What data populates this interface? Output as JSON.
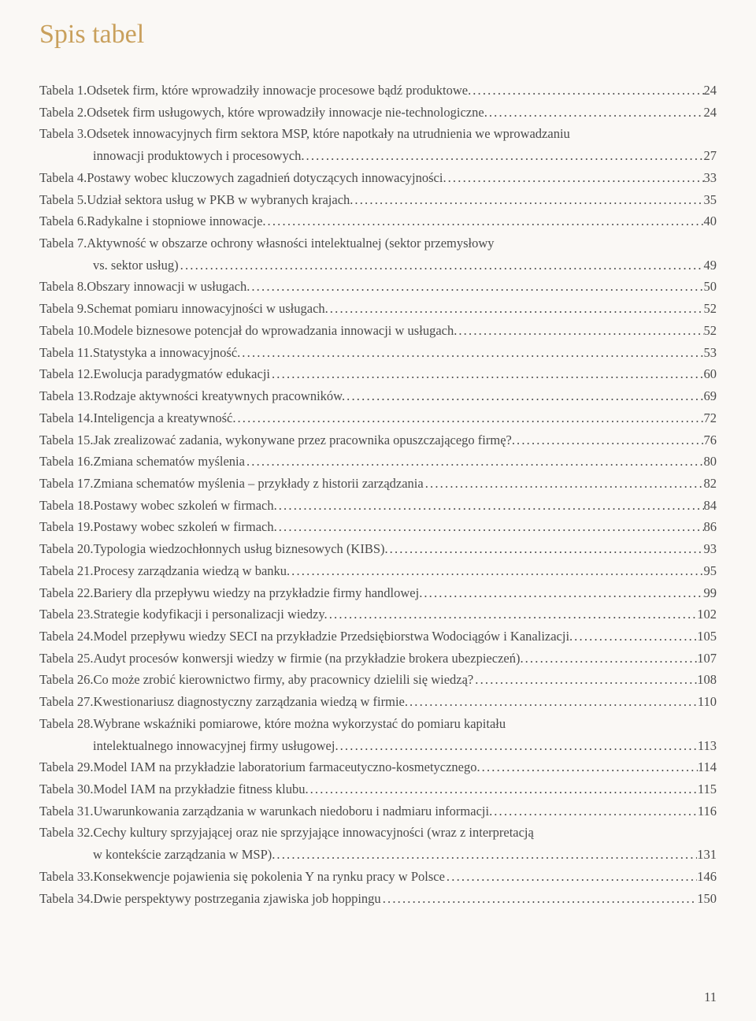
{
  "title": "Spis tabel",
  "page_number": "11",
  "colors": {
    "title_color": "#c9a05c",
    "text_color": "#4a4a4a",
    "background": "#faf8f5"
  },
  "typography": {
    "title_fontsize": 34,
    "body_fontsize": 16.5,
    "line_height": 1.68
  },
  "entries": [
    {
      "label": "Tabela 1.",
      "title": " Odsetek firm, które wprowadziły innowacje procesowe bądź produktowe.",
      "page": "24",
      "indent": false
    },
    {
      "label": "Tabela 2.",
      "title": " Odsetek firm usługowych, które wprowadziły innowacje nie-technologiczne.",
      "page": "24",
      "indent": false
    },
    {
      "label": "Tabela 3.",
      "title": " Odsetek innowacyjnych firm sektora MSP, które napotkały na utrudnienia we wprowadzaniu",
      "page": "",
      "indent": false
    },
    {
      "label": "",
      "title": "innowacji produktowych i procesowych.",
      "page": "27",
      "indent": true
    },
    {
      "label": "Tabela 4.",
      "title": " Postawy wobec kluczowych zagadnień dotyczących innowacyjności.",
      "page": "33",
      "indent": false
    },
    {
      "label": "Tabela 5.",
      "title": " Udział sektora usług w PKB w wybranych krajach.",
      "page": "35",
      "indent": false
    },
    {
      "label": "Tabela 6.",
      "title": " Radykalne i stopniowe innowacje.",
      "page": "40",
      "indent": false
    },
    {
      "label": "Tabela 7.",
      "title": " Aktywność w obszarze ochrony własności intelektualnej (sektor przemysłowy",
      "page": "",
      "indent": false
    },
    {
      "label": "",
      "title": "vs. sektor usług)",
      "page": "49",
      "indent": true
    },
    {
      "label": "Tabela 8.",
      "title": " Obszary innowacji w usługach.",
      "page": "50",
      "indent": false
    },
    {
      "label": "Tabela 9.",
      "title": " Schemat pomiaru innowacyjności w usługach.",
      "page": "52",
      "indent": false
    },
    {
      "label": "Tabela 10.",
      "title": " Modele biznesowe potencjał do wprowadzania innowacji w usługach.",
      "page": "52",
      "indent": false
    },
    {
      "label": "Tabela 11.",
      "title": " Statystyka a innowacyjność.",
      "page": "53",
      "indent": false
    },
    {
      "label": "Tabela 12.",
      "title": " Ewolucja paradygmatów edukacji",
      "page": "60",
      "indent": false
    },
    {
      "label": "Tabela 13.",
      "title": " Rodzaje aktywności kreatywnych pracowników.",
      "page": "69",
      "indent": false
    },
    {
      "label": "Tabela 14.",
      "title": " Inteligencja a kreatywność.",
      "page": "72",
      "indent": false
    },
    {
      "label": "Tabela 15.",
      "title": " Jak zrealizować zadania, wykonywane przez pracownika opuszczającego firmę?.",
      "page": "76",
      "indent": false
    },
    {
      "label": "Tabela 16.",
      "title": " Zmiana schematów myślenia",
      "page": "80",
      "indent": false
    },
    {
      "label": "Tabela 17.",
      "title": " Zmiana schematów myślenia – przykłady z historii zarządzania",
      "page": "82",
      "indent": false
    },
    {
      "label": "Tabela 18.",
      "title": " Postawy wobec szkoleń w firmach.",
      "page": "84",
      "indent": false
    },
    {
      "label": "Tabela 19.",
      "title": " Postawy wobec szkoleń w firmach.",
      "page": "86",
      "indent": false
    },
    {
      "label": "Tabela 20.",
      "title": " Typologia wiedzochłonnych usług biznesowych (KIBS).",
      "page": "93",
      "indent": false
    },
    {
      "label": "Tabela 21.",
      "title": " Procesy zarządzania wiedzą w banku.",
      "page": "95",
      "indent": false
    },
    {
      "label": "Tabela 22.",
      "title": " Bariery dla przepływu wiedzy na przykładzie firmy handlowej.",
      "page": "99",
      "indent": false
    },
    {
      "label": "Tabela 23.",
      "title": " Strategie kodyfikacji i personalizacji wiedzy.",
      "page": "102",
      "indent": false
    },
    {
      "label": "Tabela 24.",
      "title": " Model przepływu wiedzy SECI na przykładzie Przedsiębiorstwa Wodociągów i Kanalizacji.",
      "page": "105",
      "indent": false
    },
    {
      "label": "Tabela 25.",
      "title": " Audyt procesów konwersji wiedzy w firmie (na przykładzie brokera ubezpieczeń).",
      "page": "107",
      "indent": false
    },
    {
      "label": "Tabela 26.",
      "title": " Co może zrobić kierownictwo firmy, aby pracownicy dzielili się wiedzą?",
      "page": "108",
      "indent": false
    },
    {
      "label": "Tabela 27.",
      "title": " Kwestionariusz diagnostyczny zarządzania wiedzą w firmie.",
      "page": "110",
      "indent": false
    },
    {
      "label": "Tabela 28.",
      "title": " Wybrane wskaźniki pomiarowe, które można wykorzystać do pomiaru kapitału",
      "page": "",
      "indent": false
    },
    {
      "label": "",
      "title": "intelektualnego innowacyjnej firmy usługowej.",
      "page": "113",
      "indent": true
    },
    {
      "label": "Tabela 29.",
      "title": " Model IAM na przykładzie laboratorium farmaceutyczno-kosmetycznego.",
      "page": "114",
      "indent": false
    },
    {
      "label": "Tabela 30.",
      "title": " Model IAM na przykładzie fitness klubu.",
      "page": "115",
      "indent": false
    },
    {
      "label": "Tabela 31.",
      "title": " Uwarunkowania zarządzania w warunkach niedoboru i nadmiaru informacji.",
      "page": "116",
      "indent": false
    },
    {
      "label": "Tabela 32.",
      "title": " Cechy kultury sprzyjającej oraz nie sprzyjające innowacyjności (wraz z interpretacją",
      "page": "",
      "indent": false
    },
    {
      "label": "",
      "title": "w kontekście zarządzania w MSP).",
      "page": "131",
      "indent": true
    },
    {
      "label": "Tabela 33.",
      "title": " Konsekwencje pojawienia się pokolenia Y na rynku pracy w Polsce",
      "page": "146",
      "indent": false
    },
    {
      "label": "Tabela 34.",
      "title": " Dwie perspektywy postrzegania zjawiska job hoppingu",
      "page": "150",
      "indent": false
    }
  ]
}
